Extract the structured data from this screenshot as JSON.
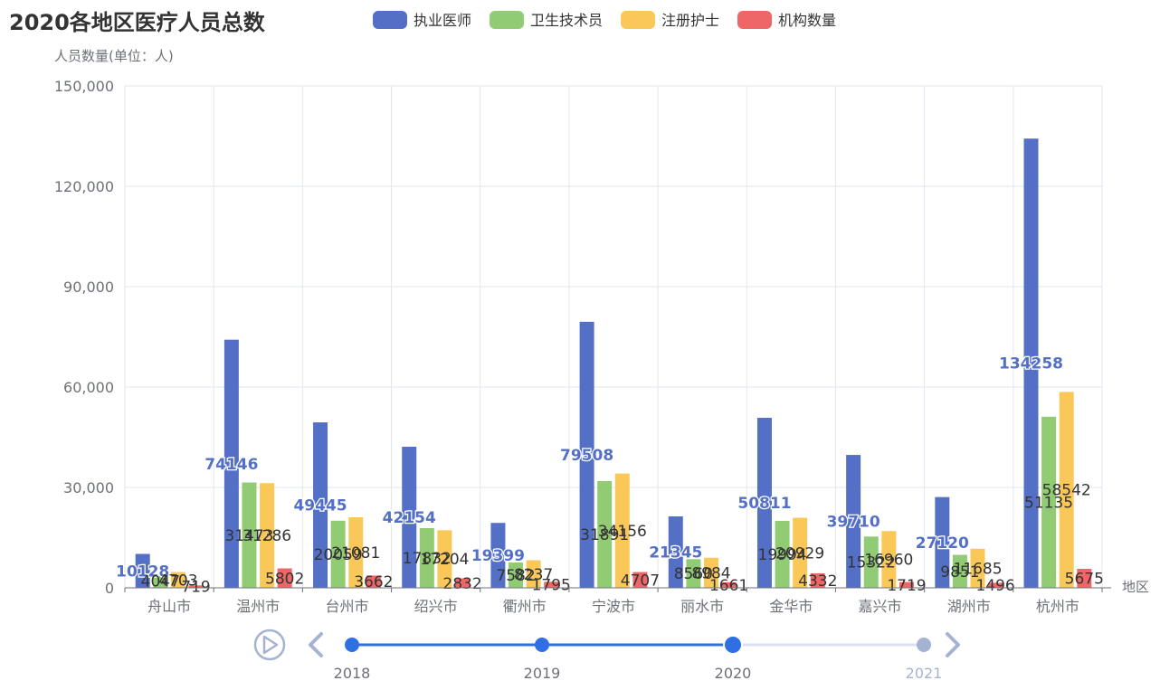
{
  "chart_data": {
    "type": "bar",
    "title": "2020各地区医疗人员总数",
    "ylabel": "人员数量(单位：人)",
    "xlabel": "地区",
    "ylim": [
      0,
      150000
    ],
    "yticks": [
      0,
      30000,
      60000,
      90000,
      120000,
      150000
    ],
    "ytick_labels": [
      "0",
      "30,000",
      "60,000",
      "90,000",
      "120,000",
      "150,000"
    ],
    "grid": true,
    "legend_position": "top",
    "categories": [
      "舟山市",
      "温州市",
      "台州市",
      "绍兴市",
      "衢州市",
      "宁波市",
      "丽水市",
      "金华市",
      "嘉兴市",
      "湖州市",
      "杭州市"
    ],
    "series": [
      {
        "name": "执业医师",
        "color": "#5470c6",
        "values": [
          10128,
          74146,
          49445,
          42154,
          19399,
          79508,
          21345,
          50811,
          39710,
          27120,
          134258
        ]
      },
      {
        "name": "卫生技术员",
        "color": "#91cc75",
        "values": [
          4047,
          31473,
          20059,
          17832,
          7582,
          31891,
          8560,
          19994,
          15322,
          9851,
          51135
        ]
      },
      {
        "name": "注册护士",
        "color": "#fac858",
        "values": [
          4703,
          31286,
          21081,
          17204,
          8237,
          34156,
          8984,
          20929,
          16960,
          11685,
          58542
        ]
      },
      {
        "name": "机构数量",
        "color": "#ee6666",
        "values": [
          719,
          5802,
          3662,
          2832,
          1795,
          4707,
          1661,
          4332,
          1719,
          1496,
          5675
        ]
      }
    ]
  },
  "timeline": {
    "years": [
      "2018",
      "2019",
      "2020",
      "2021"
    ],
    "current_index": 2,
    "play_icon": "play-icon",
    "prev_icon": "chevron-left-icon",
    "next_icon": "chevron-right-icon",
    "active_color": "#2f6fe4",
    "inactive_color": "#a5b3d2"
  }
}
